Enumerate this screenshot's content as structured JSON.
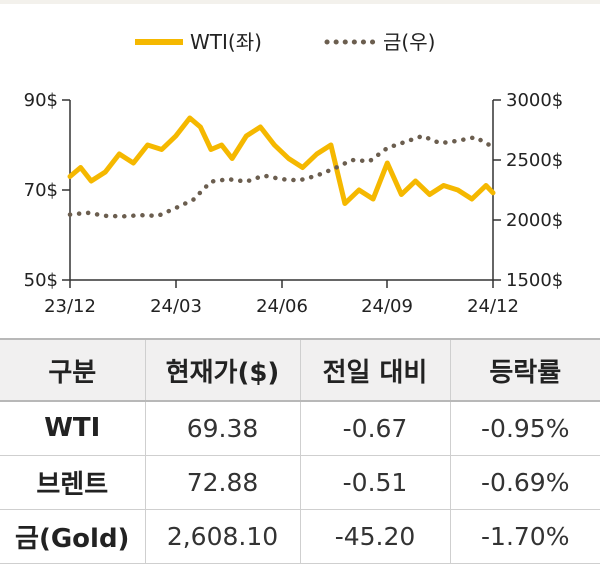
{
  "chart_data": {
    "type": "line",
    "legend": {
      "placement": "top",
      "items": [
        "WTI(좌)",
        "금(우)"
      ]
    },
    "x_ticks": [
      "23/12",
      "24/03",
      "24/06",
      "24/09",
      "24/12"
    ],
    "y_left": {
      "ticks": [
        "90$",
        "70$",
        "50$"
      ],
      "tick_values": [
        90,
        70,
        50
      ],
      "range": [
        50,
        90
      ]
    },
    "y_right": {
      "ticks": [
        "3000$",
        "2500$",
        "2000$",
        "1500$"
      ],
      "tick_values": [
        3000,
        2500,
        2000,
        1500
      ],
      "range": [
        1500,
        3000
      ]
    },
    "series": [
      {
        "name": "WTI(좌)",
        "axis": "left",
        "color": "#f5b800",
        "style": "solid",
        "x": [
          0,
          0.3,
          0.6,
          1.0,
          1.4,
          1.8,
          2.2,
          2.6,
          3.0,
          3.4,
          3.7,
          4.0,
          4.3,
          4.6,
          5.0,
          5.4,
          5.8,
          6.2,
          6.6,
          7.0,
          7.4,
          7.8,
          8.2,
          8.6,
          9.0,
          9.4,
          9.8,
          10.2,
          10.6,
          11.0,
          11.4,
          11.8,
          12.0
        ],
        "values": [
          73,
          75,
          72,
          74,
          78,
          76,
          80,
          79,
          82,
          86,
          84,
          79,
          80,
          77,
          82,
          84,
          80,
          77,
          75,
          78,
          80,
          67,
          70,
          68,
          76,
          69,
          72,
          69,
          71,
          70,
          68,
          71,
          69.38
        ]
      },
      {
        "name": "금(우)",
        "axis": "right",
        "color": "#6b5e4f",
        "style": "dotted",
        "x": [
          0,
          0.5,
          1.0,
          1.5,
          2.0,
          2.5,
          3.0,
          3.5,
          4.0,
          4.5,
          5.0,
          5.5,
          6.0,
          6.5,
          7.0,
          7.5,
          8.0,
          8.5,
          9.0,
          9.5,
          10.0,
          10.5,
          11.0,
          11.5,
          12.0
        ],
        "values": [
          2045,
          2060,
          2035,
          2030,
          2040,
          2035,
          2100,
          2170,
          2320,
          2340,
          2320,
          2370,
          2340,
          2330,
          2370,
          2430,
          2500,
          2490,
          2600,
          2650,
          2700,
          2640,
          2660,
          2690,
          2608.1
        ]
      }
    ]
  },
  "table": {
    "headers": [
      "구분",
      "현재가($)",
      "전일 대비",
      "등락률"
    ],
    "rows": [
      [
        "WTI",
        "69.38",
        "-0.67",
        "-0.95%"
      ],
      [
        "브렌트",
        "72.88",
        "-0.51",
        "-0.69%"
      ],
      [
        "금(Gold)",
        "2,608.10",
        "-45.20",
        "-1.70%"
      ]
    ]
  }
}
